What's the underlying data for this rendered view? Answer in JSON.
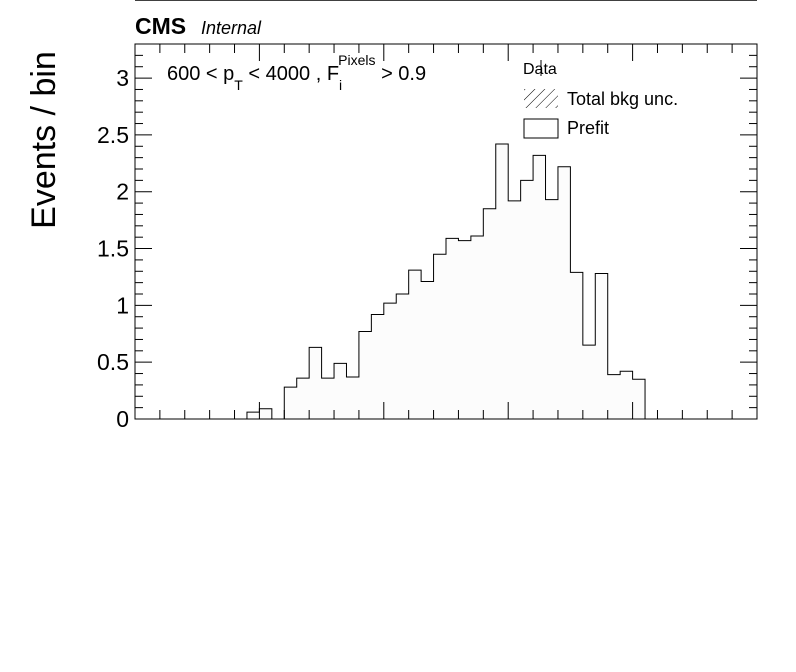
{
  "header": {
    "experiment": "CMS",
    "status": "Internal"
  },
  "chart_data": {
    "type": "histogram",
    "ylabel": "Events / bin",
    "ylim": [
      0,
      3.3
    ],
    "yticks": [
      {
        "value": 0,
        "label": "0"
      },
      {
        "value": 0.5,
        "label": "0.5"
      },
      {
        "value": 1,
        "label": "1"
      },
      {
        "value": 1.5,
        "label": "1.5"
      },
      {
        "value": 2,
        "label": "2"
      },
      {
        "value": 2.5,
        "label": "2.5"
      },
      {
        "value": 3,
        "label": "3"
      }
    ],
    "annotation": {
      "pre": "600 < p",
      "pt_sub": "T",
      "mid": " < 4000 , F",
      "f_sub": "i",
      "f_sup": "Pixels",
      "post": " > 0.9"
    },
    "legend": {
      "position": "top-right",
      "entries": [
        {
          "label": "Data",
          "style": "marker"
        },
        {
          "label": "Total bkg unc.",
          "style": "hatch"
        },
        {
          "label": "Prefit",
          "style": "box"
        }
      ]
    },
    "nbins": 50,
    "series": [
      {
        "name": "Prefit",
        "values": [
          0,
          0,
          0,
          0,
          0,
          0,
          0,
          0,
          0,
          0.06,
          0.09,
          0,
          0.28,
          0.36,
          0.63,
          0.36,
          0.49,
          0.37,
          0.77,
          0.92,
          1.02,
          1.1,
          1.31,
          1.21,
          1.45,
          1.59,
          1.57,
          1.61,
          1.85,
          2.42,
          1.92,
          2.1,
          2.32,
          1.93,
          2.22,
          1.29,
          0.65,
          1.28,
          0.39,
          0.42,
          0.35,
          0,
          0,
          0,
          0,
          0,
          0,
          0,
          0,
          0
        ]
      }
    ]
  }
}
